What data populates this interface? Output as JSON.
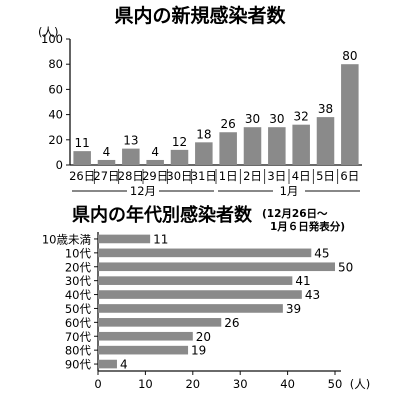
{
  "chart_data": [
    {
      "type": "bar",
      "title": "県内の新規感染者数",
      "ylabel": "(人)",
      "ylim": [
        0,
        100
      ],
      "yticks": [
        0,
        20,
        40,
        60,
        80,
        100
      ],
      "categories": [
        "26日",
        "27日",
        "28日",
        "29日",
        "30日",
        "31日",
        "1日",
        "2日",
        "3日",
        "4日",
        "5日",
        "6日"
      ],
      "values": [
        11,
        4,
        13,
        4,
        12,
        18,
        26,
        30,
        30,
        32,
        38,
        80
      ],
      "groups": [
        {
          "label": "12月",
          "start": 0,
          "end": 5
        },
        {
          "label": "1月",
          "start": 6,
          "end": 11
        }
      ],
      "grid": false,
      "bar_color": "#8a8a8a"
    },
    {
      "type": "bar",
      "orientation": "horizontal",
      "title": "県内の年代別感染者数",
      "subtitle_lines": [
        "(12月26日～",
        "1月６日発表分)"
      ],
      "xlabel": "(人)",
      "xlim": [
        0,
        50
      ],
      "xticks": [
        0,
        10,
        20,
        30,
        40,
        50
      ],
      "categories": [
        "10歳未満",
        "10代",
        "20代",
        "30代",
        "40代",
        "50代",
        "60代",
        "70代",
        "80代",
        "90代"
      ],
      "values": [
        11,
        45,
        50,
        41,
        43,
        39,
        26,
        20,
        19,
        4
      ],
      "grid": false,
      "bar_color": "#8a8a8a"
    }
  ]
}
